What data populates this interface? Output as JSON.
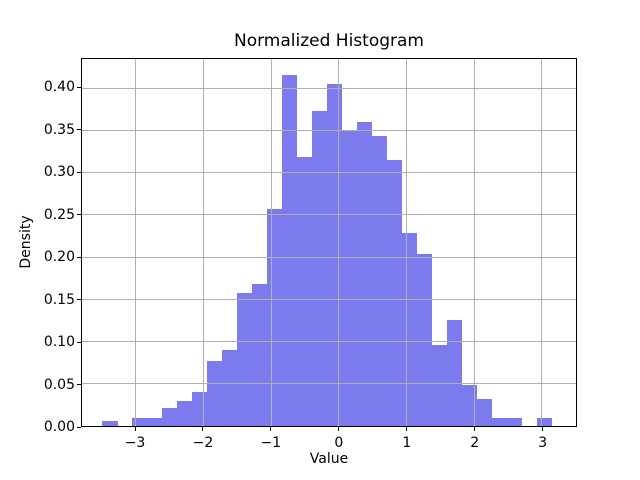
{
  "chart_data": {
    "type": "bar",
    "subtype": "histogram",
    "normalized": true,
    "title": "Normalized Histogram",
    "xlabel": "Value",
    "ylabel": "Density",
    "bin_edges": [
      -3.5,
      -3.27,
      -3.05,
      -2.83,
      -2.61,
      -2.39,
      -2.17,
      -1.95,
      -1.72,
      -1.5,
      -1.28,
      -1.06,
      -0.84,
      -0.62,
      -0.4,
      -0.17,
      0.05,
      0.27,
      0.49,
      0.71,
      0.93,
      1.16,
      1.38,
      1.6,
      1.82,
      2.04,
      2.26,
      2.48,
      2.71,
      2.93,
      3.15
    ],
    "densities": [
      0.006,
      0.0,
      0.009,
      0.009,
      0.021,
      0.03,
      0.04,
      0.077,
      0.09,
      0.158,
      0.168,
      0.257,
      0.415,
      0.318,
      0.373,
      0.405,
      0.349,
      0.36,
      0.343,
      0.315,
      0.229,
      0.204,
      0.096,
      0.126,
      0.048,
      0.032,
      0.009,
      0.009,
      0.0,
      0.009
    ],
    "xlim": [
      -3.795,
      3.505
    ],
    "ylim": [
      0,
      0.4345
    ],
    "xticks": [
      -3,
      -2,
      -1,
      0,
      1,
      2,
      3
    ],
    "xtick_labels": [
      "−3",
      "−2",
      "−1",
      "0",
      "1",
      "2",
      "3"
    ],
    "yticks": [
      0.0,
      0.05,
      0.1,
      0.15,
      0.2,
      0.25,
      0.3,
      0.35,
      0.4
    ],
    "ytick_labels": [
      "0.00",
      "0.05",
      "0.10",
      "0.15",
      "0.20",
      "0.25",
      "0.30",
      "0.35",
      "0.40"
    ],
    "grid": true,
    "legend": "none",
    "bar_color": "#7b7bee",
    "grid_color": "#b0b0b0",
    "spine_color": "#000000",
    "text_color": "#000000"
  }
}
